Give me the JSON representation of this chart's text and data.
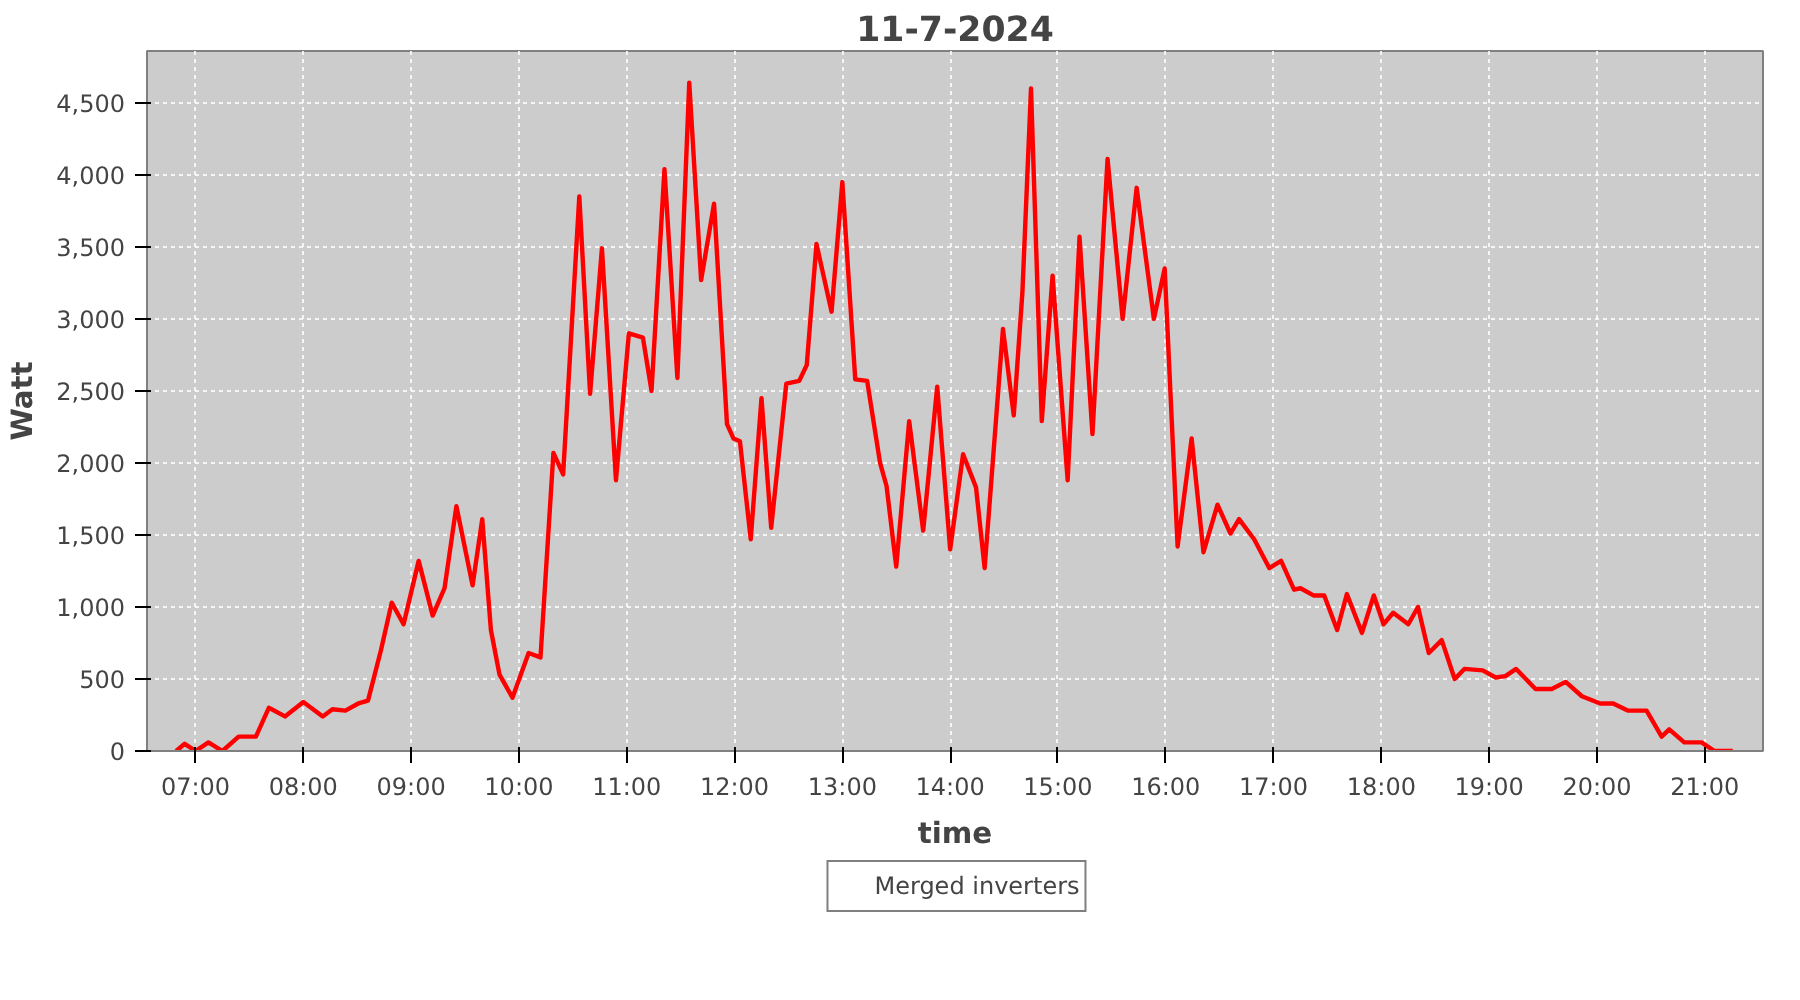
{
  "chart_data": {
    "type": "line",
    "title": "11-7-2024",
    "xlabel": "time",
    "ylabel": "Watt",
    "xlim": [
      6.55,
      21.54
    ],
    "ylim": [
      0,
      4860
    ],
    "xticks": [
      {
        "value": 7,
        "label": "07:00"
      },
      {
        "value": 8,
        "label": "08:00"
      },
      {
        "value": 9,
        "label": "09:00"
      },
      {
        "value": 10,
        "label": "10:00"
      },
      {
        "value": 11,
        "label": "11:00"
      },
      {
        "value": 12,
        "label": "12:00"
      },
      {
        "value": 13,
        "label": "13:00"
      },
      {
        "value": 14,
        "label": "14:00"
      },
      {
        "value": 15,
        "label": "15:00"
      },
      {
        "value": 16,
        "label": "16:00"
      },
      {
        "value": 17,
        "label": "17:00"
      },
      {
        "value": 18,
        "label": "18:00"
      },
      {
        "value": 19,
        "label": "19:00"
      },
      {
        "value": 20,
        "label": "20:00"
      },
      {
        "value": 21,
        "label": "21:00"
      }
    ],
    "yticks": [
      0,
      {
        "value": 500,
        "label": "500"
      },
      {
        "value": 1000,
        "label": "1,000"
      },
      {
        "value": 1500,
        "label": "1,500"
      },
      {
        "value": 2000,
        "label": "2,000"
      },
      {
        "value": 2500,
        "label": "2,500"
      },
      {
        "value": 3000,
        "label": "3,000"
      },
      {
        "value": 3500,
        "label": "3,500"
      },
      {
        "value": 4000,
        "label": "4,000"
      },
      {
        "value": 4500,
        "label": "4,500"
      }
    ],
    "grid": true,
    "legend": "bottom",
    "series": [
      {
        "name": "Merged inverters",
        "color": "#ff0000",
        "x": [
          6.82,
          6.9,
          7.0,
          7.12,
          7.25,
          7.4,
          7.56,
          7.68,
          7.83,
          8.0,
          8.18,
          8.27,
          8.39,
          8.51,
          8.6,
          8.72,
          8.82,
          8.93,
          9.07,
          9.2,
          9.31,
          9.42,
          9.57,
          9.66,
          9.74,
          9.82,
          9.94,
          10.09,
          10.2,
          10.32,
          10.41,
          10.56,
          10.66,
          10.77,
          10.9,
          11.02,
          11.15,
          11.23,
          11.35,
          11.47,
          11.58,
          11.69,
          11.81,
          11.93,
          11.99,
          12.05,
          12.15,
          12.25,
          12.34,
          12.48,
          12.6,
          12.67,
          12.76,
          12.9,
          13.0,
          13.12,
          13.23,
          13.35,
          13.41,
          13.5,
          13.62,
          13.75,
          13.88,
          14.0,
          14.12,
          14.24,
          14.32,
          14.49,
          14.59,
          14.67,
          14.75,
          14.85,
          14.95,
          15.09,
          15.2,
          15.32,
          15.46,
          15.6,
          15.73,
          15.89,
          15.99,
          16.11,
          16.24,
          16.35,
          16.48,
          16.6,
          16.68,
          16.82,
          16.96,
          17.07,
          17.19,
          17.25,
          17.37,
          17.47,
          17.59,
          17.68,
          17.82,
          17.93,
          18.02,
          18.11,
          18.25,
          18.34,
          18.44,
          18.56,
          18.68,
          18.77,
          18.94,
          19.06,
          19.15,
          19.25,
          19.43,
          19.58,
          19.71,
          19.86,
          20.03,
          20.15,
          20.29,
          20.46,
          20.6,
          20.67,
          20.81,
          20.97,
          21.09,
          21.26
        ],
        "values": [
          0,
          50,
          0,
          60,
          0,
          100,
          100,
          300,
          240,
          340,
          240,
          290,
          280,
          330,
          350,
          700,
          1030,
          880,
          1320,
          940,
          1130,
          1700,
          1150,
          1610,
          840,
          530,
          370,
          680,
          650,
          2070,
          1920,
          3850,
          2480,
          3490,
          1880,
          2900,
          2870,
          2500,
          4040,
          2590,
          4640,
          3270,
          3800,
          2270,
          2170,
          2150,
          1470,
          2450,
          1550,
          2550,
          2570,
          2680,
          3520,
          3050,
          3950,
          2580,
          2570,
          2000,
          1840,
          1280,
          2290,
          1530,
          2530,
          1400,
          2060,
          1830,
          1270,
          2930,
          2330,
          3180,
          4600,
          2290,
          3300,
          1880,
          3570,
          2200,
          4110,
          3000,
          3910,
          3000,
          3350,
          1420,
          2170,
          1380,
          1710,
          1510,
          1610,
          1470,
          1270,
          1320,
          1120,
          1130,
          1080,
          1080,
          840,
          1090,
          820,
          1080,
          880,
          960,
          880,
          1000,
          680,
          770,
          500,
          570,
          560,
          510,
          520,
          570,
          430,
          430,
          480,
          380,
          330,
          330,
          280,
          280,
          100,
          150,
          60,
          60,
          0,
          0
        ]
      }
    ]
  }
}
